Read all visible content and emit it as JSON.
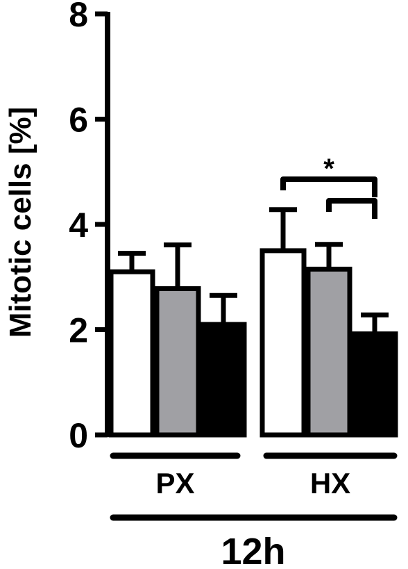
{
  "chart_data": {
    "type": "bar",
    "ylabel": "Mitotic cells [%]",
    "ylim": [
      0,
      8
    ],
    "yticks": [
      "0",
      "2",
      "4",
      "6",
      "8"
    ],
    "grid": false,
    "legend": "none",
    "categories": [
      "PX",
      "HX"
    ],
    "supergroup_label": "12h",
    "series": [
      {
        "color": "#ffffff",
        "values": [
          3.1,
          3.5
        ],
        "errors": [
          0.35,
          0.78
        ]
      },
      {
        "color": "#a0a0a4",
        "values": [
          2.78,
          3.15
        ],
        "errors": [
          0.83,
          0.47
        ]
      },
      {
        "color": "#000000",
        "values": [
          2.1,
          1.92
        ],
        "errors": [
          0.55,
          0.36
        ]
      }
    ],
    "significance": [
      {
        "group": "HX",
        "from_series": 0,
        "to_series": 2,
        "label": "*"
      },
      {
        "group": "HX",
        "from_series": 1,
        "to_series": 2,
        "label": ""
      }
    ]
  }
}
